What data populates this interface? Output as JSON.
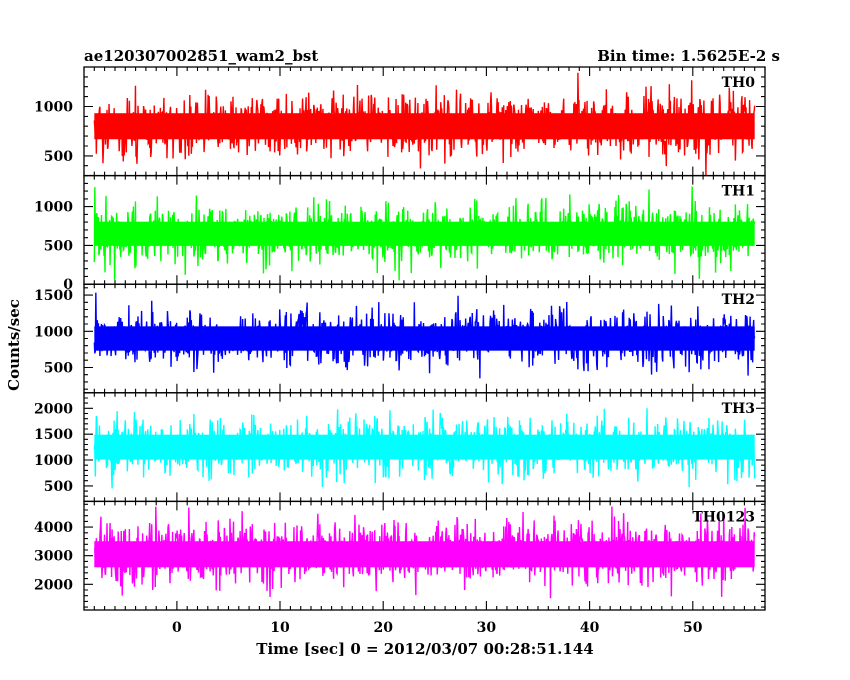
{
  "header": {
    "left_title": "ae120307002851_wam2_bst",
    "right_title": "Bin time: 1.5625E-2 s"
  },
  "chart_data": {
    "type": "line",
    "subtype": "stacked-lightcurves",
    "title": "ae120307002851_wam2_bst",
    "subtitle": "Bin time: 1.5625E-2 s",
    "xlabel": "Time [sec] 0 = 2012/03/07 00:28:51.144",
    "ylabel": "Counts/sec",
    "xlim": [
      -9,
      57
    ],
    "x_data_range": [
      -8,
      56
    ],
    "bin_time_s": 0.015625,
    "x_ticks": [
      0,
      10,
      20,
      30,
      40,
      50
    ],
    "grid": false,
    "panels": [
      {
        "label": "TH0",
        "color": "#ff0000",
        "ylim": [
          300,
          1400
        ],
        "y_ticks": [
          500,
          1000
        ],
        "baseline": 380,
        "lo": 300,
        "hi": 1400,
        "level": [
          [
            -8,
            760
          ],
          [
            0,
            800
          ],
          [
            10,
            820
          ],
          [
            20,
            830
          ],
          [
            30,
            820
          ],
          [
            40,
            820
          ],
          [
            50,
            820
          ],
          [
            56,
            820
          ]
        ]
      },
      {
        "label": "TH1",
        "color": "#00ff00",
        "ylim": [
          0,
          1400
        ],
        "y_ticks": [
          0,
          500,
          1000
        ],
        "baseline": 500,
        "lo": 50,
        "hi": 1350,
        "level": [
          [
            -8,
            650
          ],
          [
            0,
            650
          ],
          [
            10,
            660
          ],
          [
            20,
            660
          ],
          [
            30,
            660
          ],
          [
            40,
            650
          ],
          [
            50,
            650
          ],
          [
            56,
            650
          ]
        ]
      },
      {
        "label": "TH2",
        "color": "#0000ff",
        "ylim": [
          150,
          1650
        ],
        "y_ticks": [
          500,
          1000,
          1500
        ],
        "baseline": 700,
        "lo": 200,
        "hi": 1600,
        "level": [
          [
            -8,
            900
          ],
          [
            0,
            900
          ],
          [
            10,
            910
          ],
          [
            20,
            900
          ],
          [
            30,
            920
          ],
          [
            40,
            900
          ],
          [
            50,
            900
          ],
          [
            56,
            900
          ]
        ]
      },
      {
        "label": "TH3",
        "color": "#00ffff",
        "ylim": [
          200,
          2300
        ],
        "y_ticks": [
          500,
          1000,
          1500,
          2000
        ],
        "baseline": 1100,
        "lo": 300,
        "hi": 2300,
        "level": [
          [
            -8,
            1250
          ],
          [
            0,
            1250
          ],
          [
            10,
            1260
          ],
          [
            20,
            1250
          ],
          [
            30,
            1260
          ],
          [
            40,
            1250
          ],
          [
            50,
            1250
          ],
          [
            56,
            1250
          ]
        ]
      },
      {
        "label": "TH0123",
        "color": "#ff00ff",
        "ylim": [
          1100,
          4900
        ],
        "y_ticks": [
          2000,
          3000,
          4000
        ],
        "baseline": 2900,
        "lo": 1100,
        "hi": 4900,
        "level": [
          [
            -8,
            3000
          ],
          [
            0,
            3050
          ],
          [
            10,
            3100
          ],
          [
            20,
            3150
          ],
          [
            30,
            3150
          ],
          [
            40,
            3150
          ],
          [
            50,
            3150
          ],
          [
            56,
            3150
          ]
        ]
      }
    ]
  }
}
